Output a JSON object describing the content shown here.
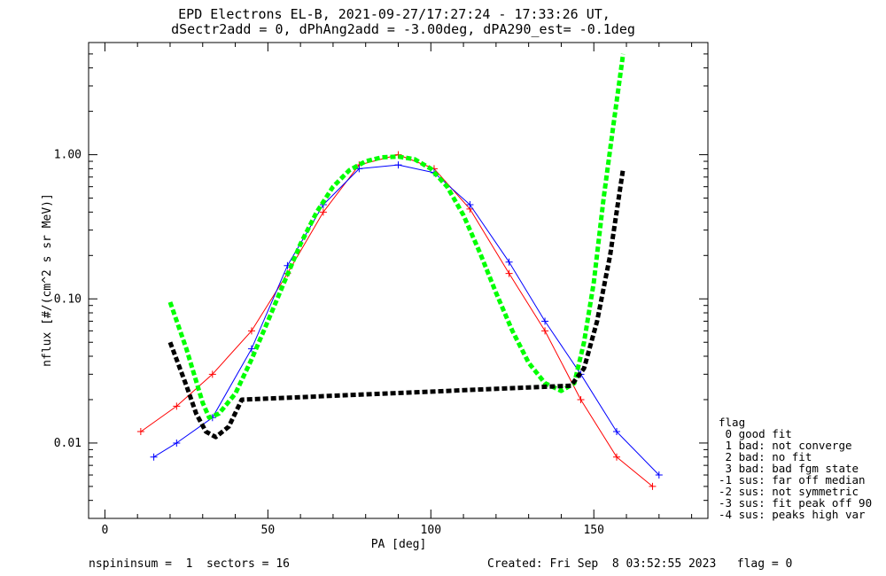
{
  "title_line1": "EPD Electrons EL-B, 2021-09-27/17:27:24 - 17:33:26 UT,",
  "title_line2": "dSectr2add = 0, dPhAng2add = -3.00deg, dPA290_est=  -0.1deg",
  "footer_left": "nspininsum =  1  sectors = 16",
  "footer_right": "Created: Fri Sep  8 03:52:55 2023   flag = 0",
  "legend": {
    "title": "flag",
    "items": [
      " 0 good fit",
      " 1 bad: not converge",
      " 2 bad: no fit",
      " 3 bad: bad fgm state",
      "-1 sus: far off median",
      "-2 sus: not symmetric",
      "-3 sus: fit peak off 90",
      "-4 sus: peaks high var"
    ]
  },
  "chart_data": {
    "type": "line",
    "title": "EPD Electrons EL-B, 2021-09-27/17:27:24 - 17:33:26 UT, dSectr2add = 0, dPhAng2add = -3.00deg, dPA290_est=  -0.1deg",
    "xlabel": "PA [deg]",
    "ylabel": "nflux [#/(cm^2 s sr MeV)]",
    "xlim": [
      -5,
      185
    ],
    "ylim": [
      0.003,
      6.0
    ],
    "yscale": "log",
    "x_ticks": [
      0,
      50,
      100,
      150
    ],
    "x_tick_labels": [
      "0",
      "50",
      "100",
      "150"
    ],
    "y_ticks": [
      0.01,
      0.1,
      1.0
    ],
    "y_tick_labels": [
      "0.01",
      "0.10",
      "1.00"
    ],
    "grid": false,
    "legend_position": "bottom-right outside",
    "colors": {
      "series_a": "#ff0000",
      "series_b": "#0000ff",
      "fit_green": "#00ff00",
      "fit_black": "#000000"
    },
    "series": [
      {
        "color": "#ff0000",
        "style": "line-with-plus-markers",
        "x": [
          11,
          22,
          33,
          45,
          56,
          67,
          78,
          90,
          101,
          112,
          124,
          135,
          146,
          157,
          168
        ],
        "y": [
          0.012,
          0.018,
          0.03,
          0.06,
          0.15,
          0.4,
          0.85,
          1.0,
          0.8,
          0.42,
          0.15,
          0.06,
          0.02,
          0.008,
          0.005
        ]
      },
      {
        "color": "#0000ff",
        "style": "line-with-plus-markers",
        "x": [
          15,
          22,
          33,
          45,
          56,
          67,
          78,
          90,
          101,
          112,
          124,
          135,
          146,
          157,
          170
        ],
        "y": [
          0.008,
          0.01,
          0.015,
          0.045,
          0.17,
          0.45,
          0.8,
          0.85,
          0.75,
          0.45,
          0.18,
          0.07,
          0.03,
          0.012,
          0.006
        ]
      },
      {
        "color": "#00ff00",
        "style": "thick-dashed",
        "x": [
          20,
          25,
          30,
          32,
          35,
          40,
          45,
          50,
          55,
          60,
          65,
          70,
          75,
          80,
          85,
          90,
          95,
          100,
          105,
          110,
          115,
          120,
          125,
          130,
          135,
          140,
          144,
          147,
          150,
          153,
          156,
          159
        ],
        "y": [
          0.095,
          0.045,
          0.019,
          0.015,
          0.016,
          0.022,
          0.038,
          0.07,
          0.13,
          0.24,
          0.4,
          0.6,
          0.78,
          0.9,
          0.96,
          0.97,
          0.93,
          0.8,
          0.6,
          0.38,
          0.21,
          0.11,
          0.06,
          0.036,
          0.026,
          0.023,
          0.026,
          0.05,
          0.13,
          0.5,
          1.6,
          5.0
        ]
      },
      {
        "color": "#000000",
        "style": "thick-dashed",
        "x": [
          20,
          25,
          28,
          31,
          34,
          38,
          42,
          143,
          147,
          151,
          155,
          159
        ],
        "y": [
          0.05,
          0.025,
          0.016,
          0.012,
          0.011,
          0.013,
          0.02,
          0.025,
          0.033,
          0.07,
          0.2,
          0.8
        ]
      }
    ]
  }
}
